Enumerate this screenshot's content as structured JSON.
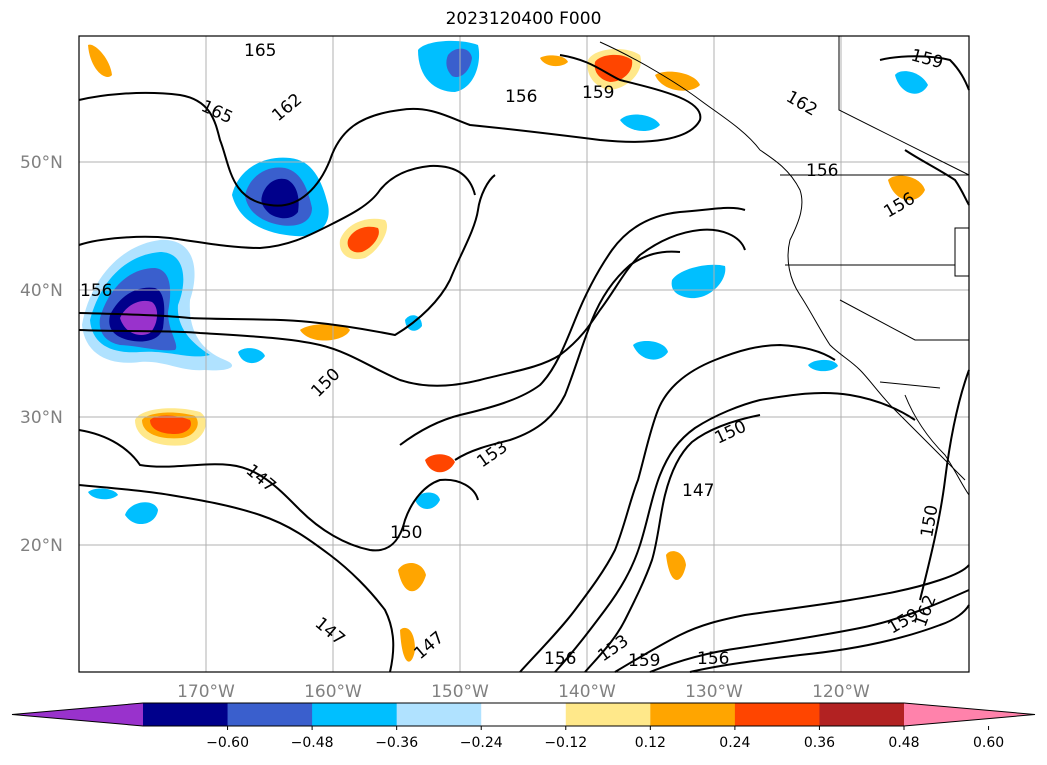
{
  "title": "2023120400 F000",
  "lat_labels": [
    "50°N",
    "40°N",
    "30°N",
    "20°N"
  ],
  "lon_labels": [
    "170°W",
    "160°W",
    "150°W",
    "140°W",
    "130°W",
    "120°W"
  ],
  "contour_labels": [
    "165",
    "162",
    "165",
    "156",
    "159",
    "159",
    "162",
    "156",
    "156",
    "156",
    "150",
    "153",
    "150",
    "147",
    "147",
    "150",
    "147",
    "150",
    "153",
    "156",
    "159",
    "156",
    "159",
    "162",
    "147"
  ],
  "colorbar": {
    "ticks": [
      "−0.60",
      "−0.48",
      "−0.36",
      "−0.24",
      "−0.12",
      "0.12",
      "0.24",
      "0.36",
      "0.48",
      "0.60"
    ],
    "colors": [
      "#9932cc",
      "#00008b",
      "#3a5fcd",
      "#00bfff",
      "#b0e2ff",
      "#ffffff",
      "#ffe88a",
      "#ffa500",
      "#ff4500",
      "#b22222",
      "#ff82ab"
    ]
  }
}
